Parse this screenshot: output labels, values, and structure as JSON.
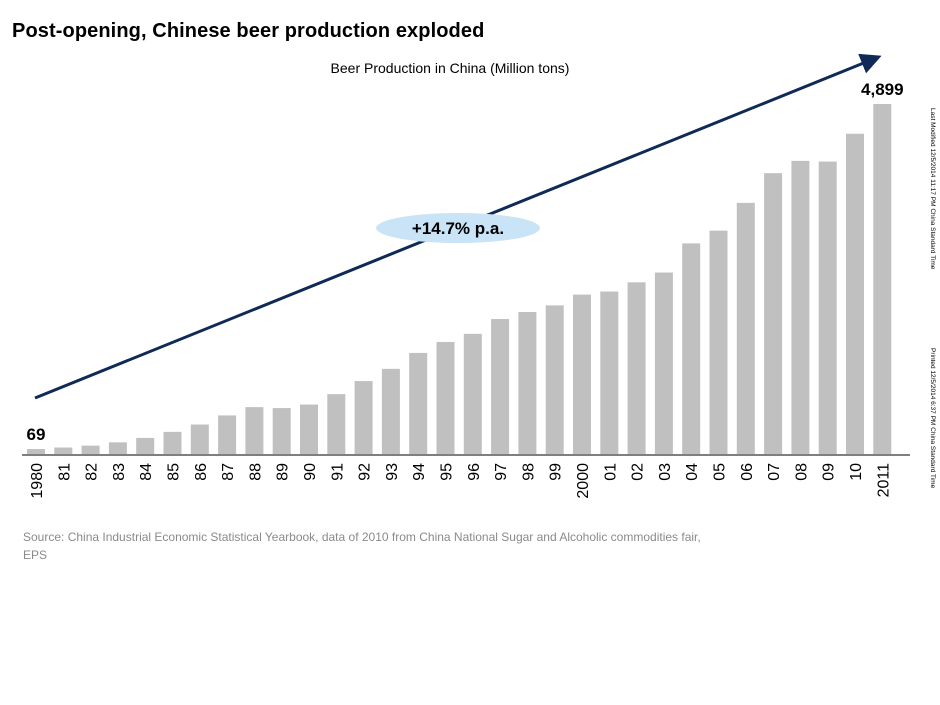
{
  "slide": {
    "title": "Post-opening, Chinese beer production exploded"
  },
  "chart_data": {
    "type": "bar",
    "title": "Beer Production in China (Million tons)",
    "categories": [
      "1980",
      "81",
      "82",
      "83",
      "84",
      "85",
      "86",
      "87",
      "88",
      "89",
      "90",
      "91",
      "92",
      "93",
      "94",
      "95",
      "96",
      "97",
      "98",
      "99",
      "2000",
      "01",
      "02",
      "03",
      "04",
      "05",
      "06",
      "07",
      "08",
      "09",
      "10",
      "2011"
    ],
    "values": [
      69,
      91,
      117,
      163,
      225,
      310,
      413,
      540,
      656,
      643,
      692,
      838,
      1021,
      1192,
      1415,
      1568,
      1682,
      1889,
      1988,
      2080,
      2231,
      2274,
      2403,
      2540,
      2948,
      3126,
      3515,
      3931,
      4103,
      4093,
      4483,
      4899
    ],
    "ylim": [
      0,
      5000
    ],
    "bar_color": "#c0c0c0",
    "labeled_values": [
      {
        "category": "1980",
        "label": "69"
      },
      {
        "category": "2011",
        "label": "4,899"
      }
    ],
    "annotation": {
      "text": "+14.7% p.a.",
      "arrow_color": "#0f2a56",
      "bubble_color": "#c9e3f7"
    },
    "grid": false,
    "legend": "none"
  },
  "footer": {
    "source": "Source: China Industrial Economic Statistical  Yearbook, data of 2010  from China National Sugar and Alcoholic commodities fair, EPS"
  },
  "side_notes": {
    "last_modified": "Last Modified 12/5/2014 11:17 PM China Standard Time",
    "printed": "Printed 12/5/2014 6:37 PM China Standard Time"
  }
}
